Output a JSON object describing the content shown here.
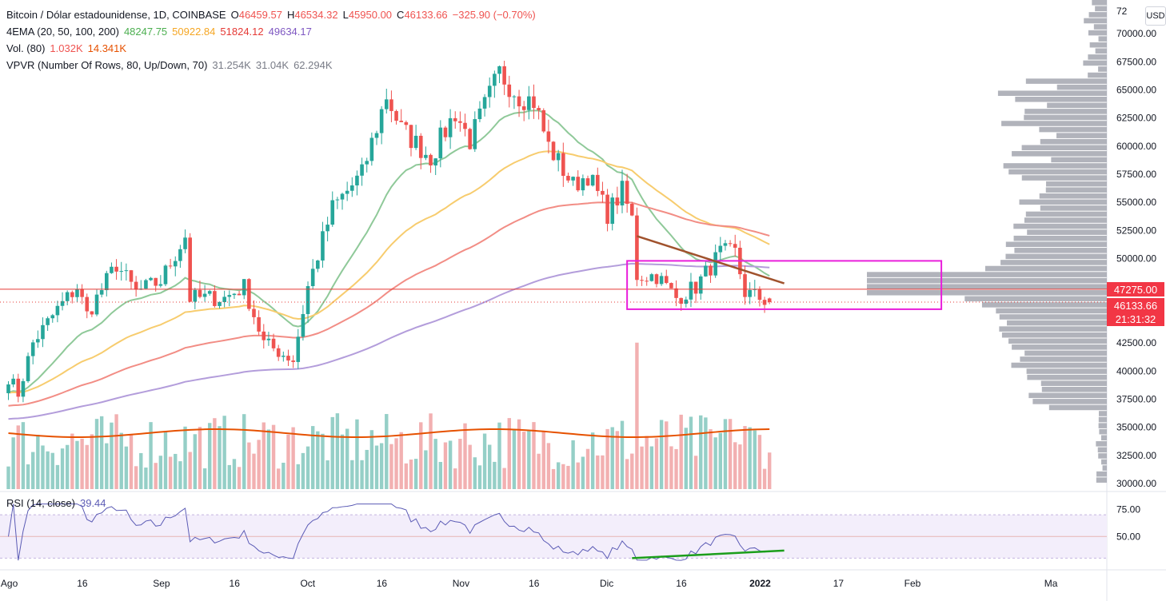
{
  "header": {
    "symbol": "Bitcoin / Dólar estadounidense, 1D, COINBASE",
    "ohlc": [
      {
        "label": "O",
        "value": "46459.57"
      },
      {
        "label": "H",
        "value": "46534.32"
      },
      {
        "label": "L",
        "value": "45950.00"
      },
      {
        "label": "C",
        "value": "46133.66"
      }
    ],
    "change": "−325.90 (−0.70%)",
    "ema": {
      "name": "4EMA (20, 50, 100, 200)",
      "v20": "48247.75",
      "v50": "50922.84",
      "v100": "51824.12",
      "v200": "49634.17"
    },
    "vol": {
      "name": "Vol. (80)",
      "v1": "1.032K",
      "v2": "14.341K"
    },
    "vpvr": {
      "name": "VPVR (Number Of Rows, 80, Up/Down, 70)",
      "v1": "31.254K",
      "v2": "31.04K",
      "v3": "62.294K"
    }
  },
  "rsi": {
    "name": "RSI (14, close)",
    "value": "39.44",
    "upper": 70,
    "mid": 50,
    "lower": 30
  },
  "currency_badge": "USD",
  "price_axis": {
    "top_label_partial": "72",
    "ticks": [
      "70000.00",
      "67500.00",
      "65000.00",
      "62500.00",
      "60000.00",
      "57500.00",
      "55000.00",
      "52500.00",
      "50000.00",
      "42500.00",
      "40000.00",
      "37500.00",
      "35000.00",
      "32500.00",
      "30000.00"
    ],
    "tick_values": [
      70000,
      67500,
      65000,
      62500,
      60000,
      57500,
      55000,
      52500,
      50000,
      42500,
      40000,
      37500,
      35000,
      32500,
      30000
    ]
  },
  "rsi_axis": {
    "ticks": [
      "75.00",
      "50.00"
    ],
    "tick_values": [
      75,
      50
    ]
  },
  "time_axis": {
    "labels": [
      "Ago",
      "16",
      "Sep",
      "16",
      "Oct",
      "16",
      "Nov",
      "16",
      "Dic",
      "16",
      "2022",
      "17",
      "Feb",
      "Ma"
    ],
    "day_index": [
      0,
      15,
      31,
      46,
      61,
      76,
      92,
      107,
      122,
      137,
      153,
      169,
      184,
      212
    ]
  },
  "tags": {
    "level_price": "47275.00",
    "last_price": "46133.66",
    "countdown": "21:31:32"
  },
  "colors": {
    "up": "#26a69a",
    "down": "#ef5350",
    "vol_up": "#95cfc7",
    "vol_down": "#f2b0b1",
    "ema20": "#8fc999",
    "ema50": "#f7cc6e",
    "ema100": "#f28d85",
    "ema200": "#b39ddb",
    "vol_ma": "#e65100",
    "vpvr": "#a3a6af",
    "level_line": "#e53935",
    "trendline": "#a0522d",
    "box": "#e91edb",
    "rsi_line": "#5b5bb5",
    "rsi_fill": "#f3eefb",
    "rsi_trend": "#1b9e1b",
    "tag_red": "#f23645"
  },
  "chart_data": {
    "type": "candlestick",
    "title": "Bitcoin / Dólar estadounidense, 1D, COINBASE",
    "y_range": [
      29500,
      73000
    ],
    "start_date": "2021-08-01",
    "anchors": [
      {
        "day": 0,
        "close": 39500
      },
      {
        "day": 2,
        "close": 38000
      },
      {
        "day": 5,
        "close": 42500
      },
      {
        "day": 10,
        "close": 45500
      },
      {
        "day": 14,
        "close": 47500
      },
      {
        "day": 16,
        "close": 45000
      },
      {
        "day": 22,
        "close": 49500
      },
      {
        "day": 26,
        "close": 47000
      },
      {
        "day": 31,
        "close": 48000
      },
      {
        "day": 36,
        "close": 52000
      },
      {
        "day": 37,
        "close": 46500
      },
      {
        "day": 44,
        "close": 46500
      },
      {
        "day": 48,
        "close": 47500
      },
      {
        "day": 52,
        "close": 42500
      },
      {
        "day": 58,
        "close": 41000
      },
      {
        "day": 61,
        "close": 47500
      },
      {
        "day": 66,
        "close": 54500
      },
      {
        "day": 72,
        "close": 57500
      },
      {
        "day": 77,
        "close": 64500
      },
      {
        "day": 80,
        "close": 61500
      },
      {
        "day": 86,
        "close": 59000
      },
      {
        "day": 91,
        "close": 63000
      },
      {
        "day": 94,
        "close": 60500
      },
      {
        "day": 100,
        "close": 66500
      },
      {
        "day": 104,
        "close": 64500
      },
      {
        "day": 107,
        "close": 64000
      },
      {
        "day": 110,
        "close": 60000
      },
      {
        "day": 115,
        "close": 56500
      },
      {
        "day": 118,
        "close": 57500
      },
      {
        "day": 122,
        "close": 54000
      },
      {
        "day": 125,
        "close": 56000
      },
      {
        "day": 127,
        "close": 53500
      },
      {
        "day": 128,
        "close": 48500
      },
      {
        "day": 132,
        "close": 48500
      },
      {
        "day": 136,
        "close": 46500
      },
      {
        "day": 140,
        "close": 47500
      },
      {
        "day": 145,
        "close": 50500
      },
      {
        "day": 148,
        "close": 50500
      },
      {
        "day": 150,
        "close": 47000
      },
      {
        "day": 153,
        "close": 46500
      },
      {
        "day": 155,
        "close": 46133.66
      }
    ],
    "level_line": 47275,
    "box": {
      "from_day": 126,
      "to_day": 190,
      "low": 45500,
      "high": 49800
    },
    "trendline": {
      "from": {
        "day": 128,
        "price": 52000
      },
      "to": {
        "day": 158,
        "price": 47800
      }
    },
    "rsi_trendline": {
      "from": {
        "day": 127,
        "rsi": 30
      },
      "to": {
        "day": 158,
        "rsi": 37
      }
    },
    "last": {
      "open": 46459.57,
      "high": 46534.32,
      "low": 45950.0,
      "close": 46133.66
    }
  }
}
